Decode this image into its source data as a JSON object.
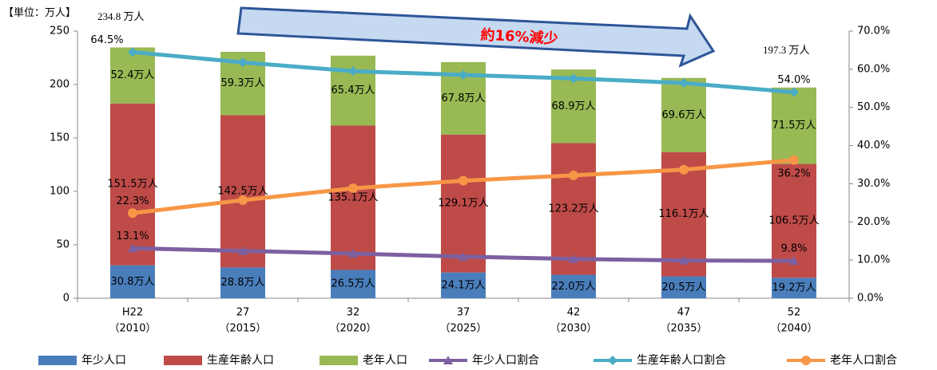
{
  "chart_data": {
    "type": "bar_line",
    "unit_label": "【単位：万人】",
    "annotations": [
      "234.8 万人",
      "197.3 万人",
      "約16%減少"
    ],
    "categories": [
      "H22",
      "27",
      "32",
      "37",
      "42",
      "47",
      "52"
    ],
    "category_years": [
      "（2010）",
      "（2015）",
      "（2020）",
      "（2025）",
      "（2030）",
      "（2035）",
      "（2040）"
    ],
    "ylim": [
      0,
      250
    ],
    "yticks": [
      0,
      50,
      100,
      150,
      200,
      250
    ],
    "y2lim": [
      0,
      70
    ],
    "y2ticks": [
      {
        "value": 0,
        "label": "0.0%"
      },
      {
        "value": 10,
        "label": "10.0%"
      },
      {
        "value": 20,
        "label": "20.0%"
      },
      {
        "value": 30,
        "label": "30.0%"
      },
      {
        "value": 40,
        "label": "40.0%"
      },
      {
        "value": 50,
        "label": "50.0%"
      },
      {
        "value": 60,
        "label": "60.0%"
      },
      {
        "value": 70,
        "label": "70.0%"
      }
    ],
    "series": [
      {
        "name": "年少人口",
        "type": "bar",
        "color": "#4a7ebb",
        "values": [
          30.8,
          28.8,
          26.5,
          24.1,
          22.0,
          20.5,
          19.2
        ],
        "value_labels": [
          "30.8万人",
          "28.8万人",
          "26.5万人",
          "24.1万人",
          "22.0万人",
          "20.5万人",
          "19.2万人"
        ]
      },
      {
        "name": "生産年齢人口",
        "type": "bar",
        "color": "#be4b48",
        "values": [
          151.5,
          142.5,
          135.1,
          129.1,
          123.2,
          116.1,
          106.5
        ],
        "value_labels": [
          "151.5万人",
          "142.5万人",
          "135.1万人",
          "129.1万人",
          "123.2万人",
          "116.1万人",
          "106.5万人"
        ]
      },
      {
        "name": "老年人口",
        "type": "bar",
        "color": "#98b954",
        "values": [
          52.4,
          59.3,
          65.4,
          67.8,
          68.9,
          69.6,
          71.5
        ],
        "value_labels": [
          "52.4万人",
          "59.3万人",
          "65.4万人",
          "67.8万人",
          "68.9万人",
          "69.6万人",
          "71.5万人"
        ]
      },
      {
        "name": "年少人口割合",
        "type": "line",
        "axis": "y2",
        "marker": "triangle",
        "color": "#7d60a0",
        "values": [
          13.1,
          12.4,
          11.7,
          10.9,
          10.3,
          9.9,
          9.8
        ],
        "value_labels": [
          "13.1%",
          null,
          null,
          null,
          null,
          null,
          "9.8%"
        ]
      },
      {
        "name": "生産年齢人口割合",
        "type": "line",
        "axis": "y2",
        "marker": "diamond",
        "color": "#4aacc6",
        "values": [
          64.5,
          61.8,
          59.5,
          58.5,
          57.6,
          56.4,
          54.0
        ],
        "value_labels": [
          "64.5%",
          null,
          null,
          null,
          null,
          null,
          "54.0%"
        ]
      },
      {
        "name": "老年人口割合",
        "type": "line",
        "axis": "y2",
        "marker": "circle",
        "color": "#f79646",
        "values": [
          22.3,
          25.7,
          28.8,
          30.8,
          32.2,
          33.7,
          36.2
        ],
        "value_labels": [
          "22.3%",
          null,
          null,
          null,
          null,
          null,
          "36.2%"
        ]
      }
    ]
  }
}
